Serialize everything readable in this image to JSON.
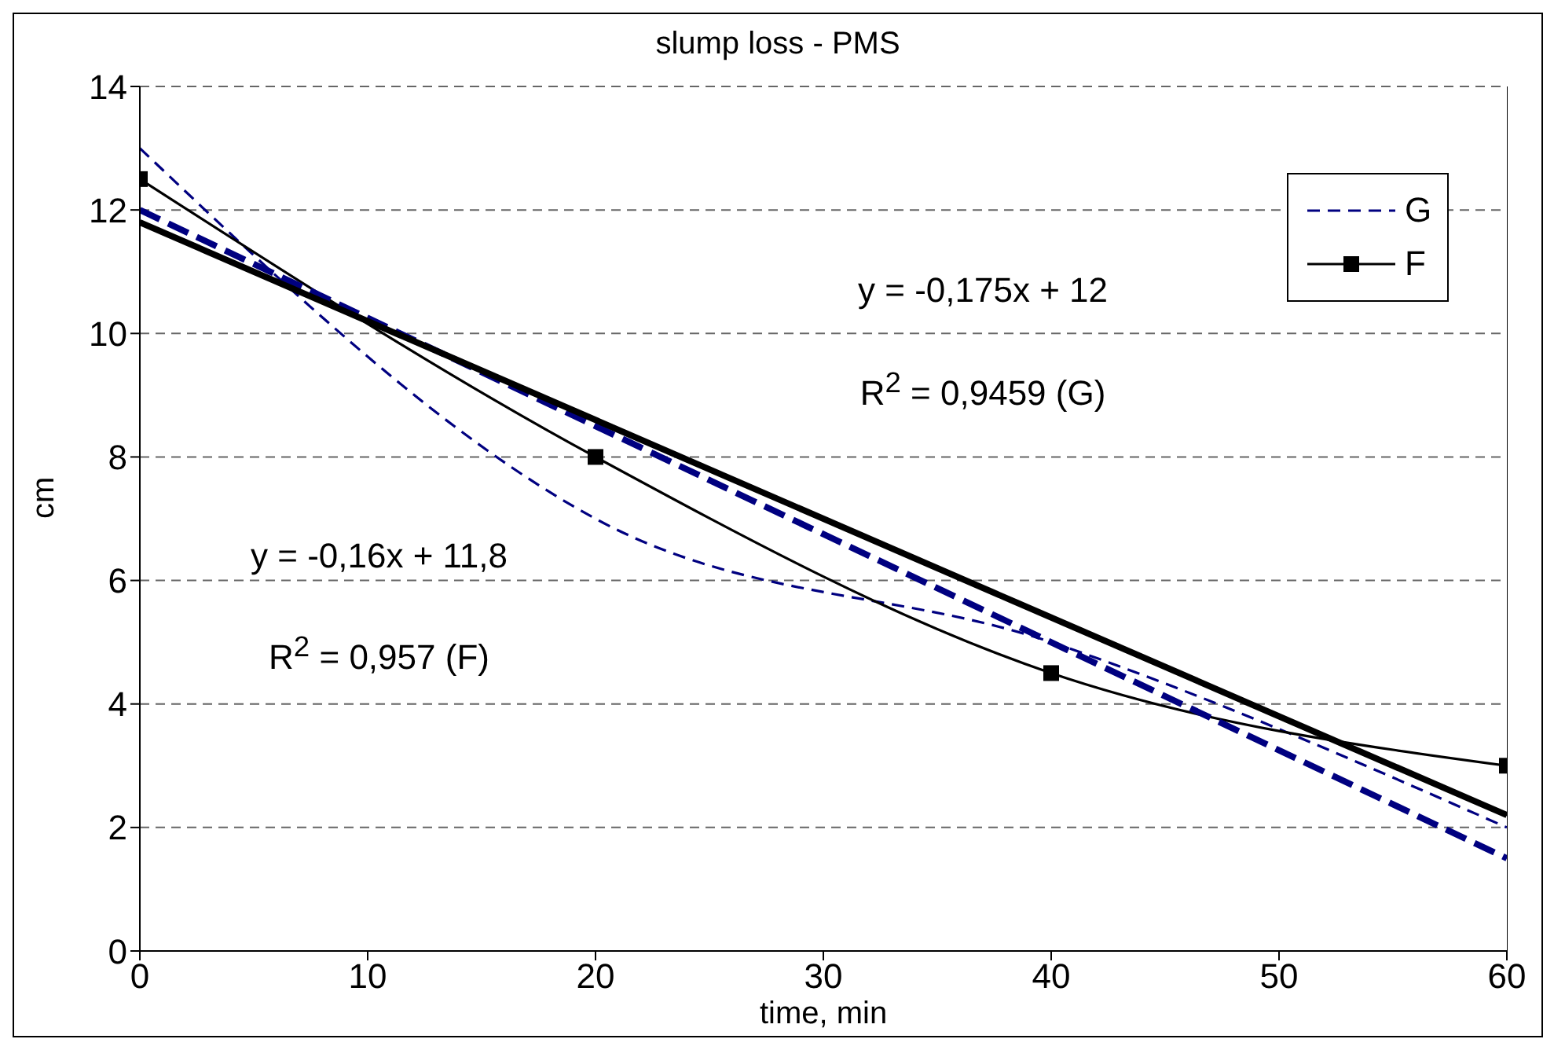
{
  "chart_data": {
    "type": "line",
    "title": "slump loss - PMS",
    "xlabel": "time, min",
    "ylabel": "cm",
    "xlim": [
      0,
      60
    ],
    "xticks": [
      0,
      10,
      20,
      30,
      40,
      50,
      60
    ],
    "ylim": [
      0,
      14
    ],
    "yticks": [
      0,
      2,
      4,
      6,
      8,
      10,
      12,
      14
    ],
    "grid": "y",
    "legend": "top right",
    "series": [
      {
        "name": "G",
        "color": "#000080",
        "x": [
          0,
          20,
          40,
          60
        ],
        "values": [
          13,
          7,
          5,
          2
        ],
        "line_style": "dashed",
        "marker": "none"
      },
      {
        "name": "F",
        "color": "#000000",
        "x": [
          0,
          20,
          40,
          60
        ],
        "values": [
          12.5,
          8,
          4.5,
          3
        ],
        "line_style": "solid",
        "marker": "square"
      },
      {
        "type": "line",
        "color": "#000080",
        "x": [
          0,
          60
        ],
        "values": [
          12,
          1.5
        ],
        "line_style": "dashed",
        "marker": "none"
      },
      {
        "type": "line",
        "color": "#000000",
        "x": [
          0,
          60
        ],
        "values": [
          11.8,
          2.2
        ],
        "line_style": "solid",
        "marker": "none"
      }
    ],
    "annotations": [
      "y = -0,175x + 12",
      "R$^{2}$ = 0,9459 (G)",
      "y = -0,16x + 11,8",
      "R$^{2}$ = 0,957 (F)"
    ]
  }
}
